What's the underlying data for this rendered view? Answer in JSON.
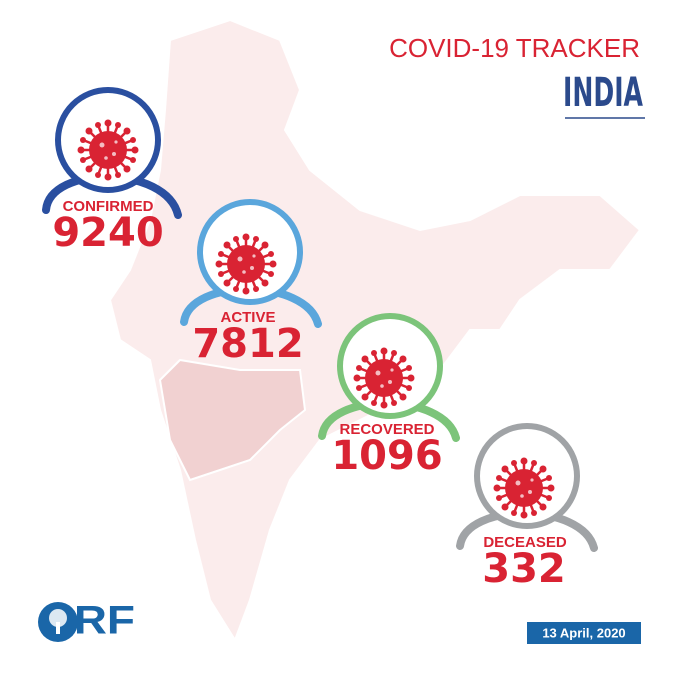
{
  "header": {
    "title": "COVID-19 TRACKER",
    "subtitle": "INDIA"
  },
  "stats": [
    {
      "label": "CONFIRMED",
      "value": 9240
    },
    {
      "label": "ACTIVE",
      "value": 7812
    },
    {
      "label": "RECOVERED",
      "value": 1096
    },
    {
      "label": "DECEASED",
      "value": 332
    }
  ],
  "date": "13 April, 2020",
  "logo": "ORF"
}
